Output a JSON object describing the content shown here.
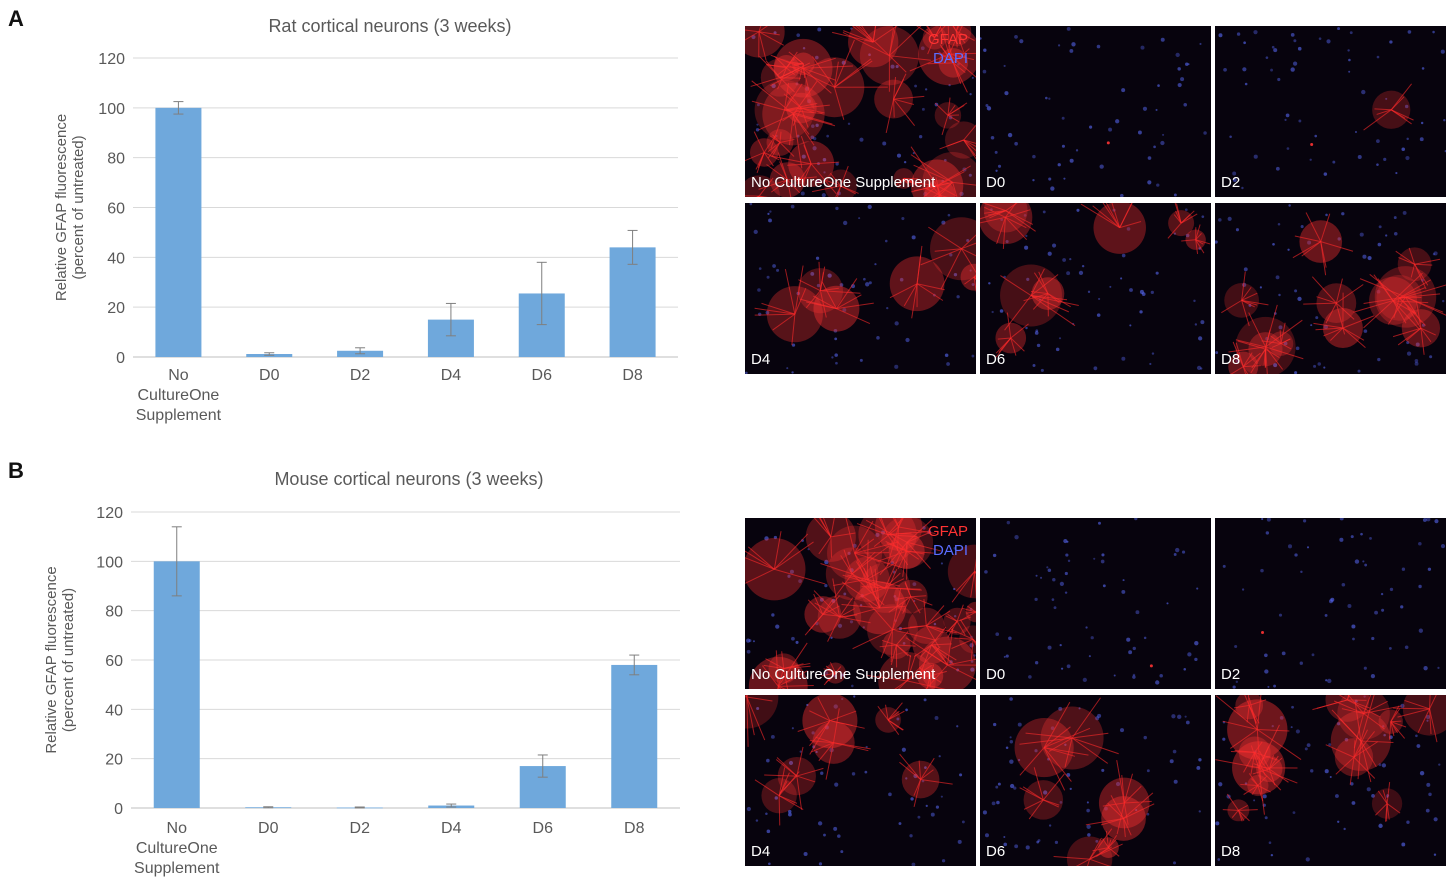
{
  "panels": [
    {
      "letter": "A",
      "chart_data": {
        "type": "bar",
        "title": "Rat cortical neurons (3 weeks)",
        "ylabel_lines": [
          "Relative GFAP fluorescence",
          "(percent of untreated)"
        ],
        "ylim": [
          0,
          120
        ],
        "yticks": [
          0,
          20,
          40,
          60,
          80,
          100,
          120
        ],
        "categories": [
          [
            "No",
            "CultureOne",
            "Supplement"
          ],
          [
            "D0"
          ],
          [
            "D2"
          ],
          [
            "D4"
          ],
          [
            "D6"
          ],
          [
            "D8"
          ]
        ],
        "values": [
          100,
          1.2,
          2.5,
          15,
          25.5,
          44
        ],
        "errors": [
          2.5,
          0.5,
          1.2,
          6.5,
          12.5,
          6.8
        ],
        "bar_color": "#6fa8dc",
        "grid": true
      },
      "images": [
        {
          "label": "No CultureOne Supplement",
          "legend": [
            "GFAP",
            "DAPI"
          ],
          "gfap_intensity": 1.0
        },
        {
          "label": "D0",
          "legend": [],
          "gfap_intensity": 0.0
        },
        {
          "label": "D2",
          "legend": [],
          "gfap_intensity": 0.02
        },
        {
          "label": "D4",
          "legend": [],
          "gfap_intensity": 0.2
        },
        {
          "label": "D6",
          "legend": [],
          "gfap_intensity": 0.3
        },
        {
          "label": "D8",
          "legend": [],
          "gfap_intensity": 0.45
        }
      ]
    },
    {
      "letter": "B",
      "chart_data": {
        "type": "bar",
        "title": "Mouse cortical neurons (3 weeks)",
        "ylabel_lines": [
          "Relative GFAP fluorescence",
          "(percent of untreated)"
        ],
        "ylim": [
          0,
          120
        ],
        "yticks": [
          0,
          20,
          40,
          60,
          80,
          100,
          120
        ],
        "categories": [
          [
            "No",
            "CultureOne",
            "Supplement"
          ],
          [
            "D0"
          ],
          [
            "D2"
          ],
          [
            "D4"
          ],
          [
            "D6"
          ],
          [
            "D8"
          ]
        ],
        "values": [
          100,
          0.3,
          0.2,
          1,
          17,
          58
        ],
        "errors": [
          14,
          0.2,
          0.2,
          0.6,
          4.5,
          4
        ],
        "bar_color": "#6fa8dc",
        "grid": true
      },
      "images": [
        {
          "label": "No CultureOne Supplement",
          "legend": [
            "GFAP",
            "DAPI"
          ],
          "gfap_intensity": 1.0
        },
        {
          "label": "D0",
          "legend": [],
          "gfap_intensity": 0.0
        },
        {
          "label": "D2",
          "legend": [],
          "gfap_intensity": 0.0
        },
        {
          "label": "D4",
          "legend": [],
          "gfap_intensity": 0.25
        },
        {
          "label": "D6",
          "legend": [],
          "gfap_intensity": 0.25
        },
        {
          "label": "D8",
          "legend": [],
          "gfap_intensity": 0.5
        }
      ]
    }
  ],
  "colors": {
    "gfap": "#ff3333",
    "dapi": "#5b6dff",
    "grid": "#d9d9d9",
    "text": "#595959"
  }
}
